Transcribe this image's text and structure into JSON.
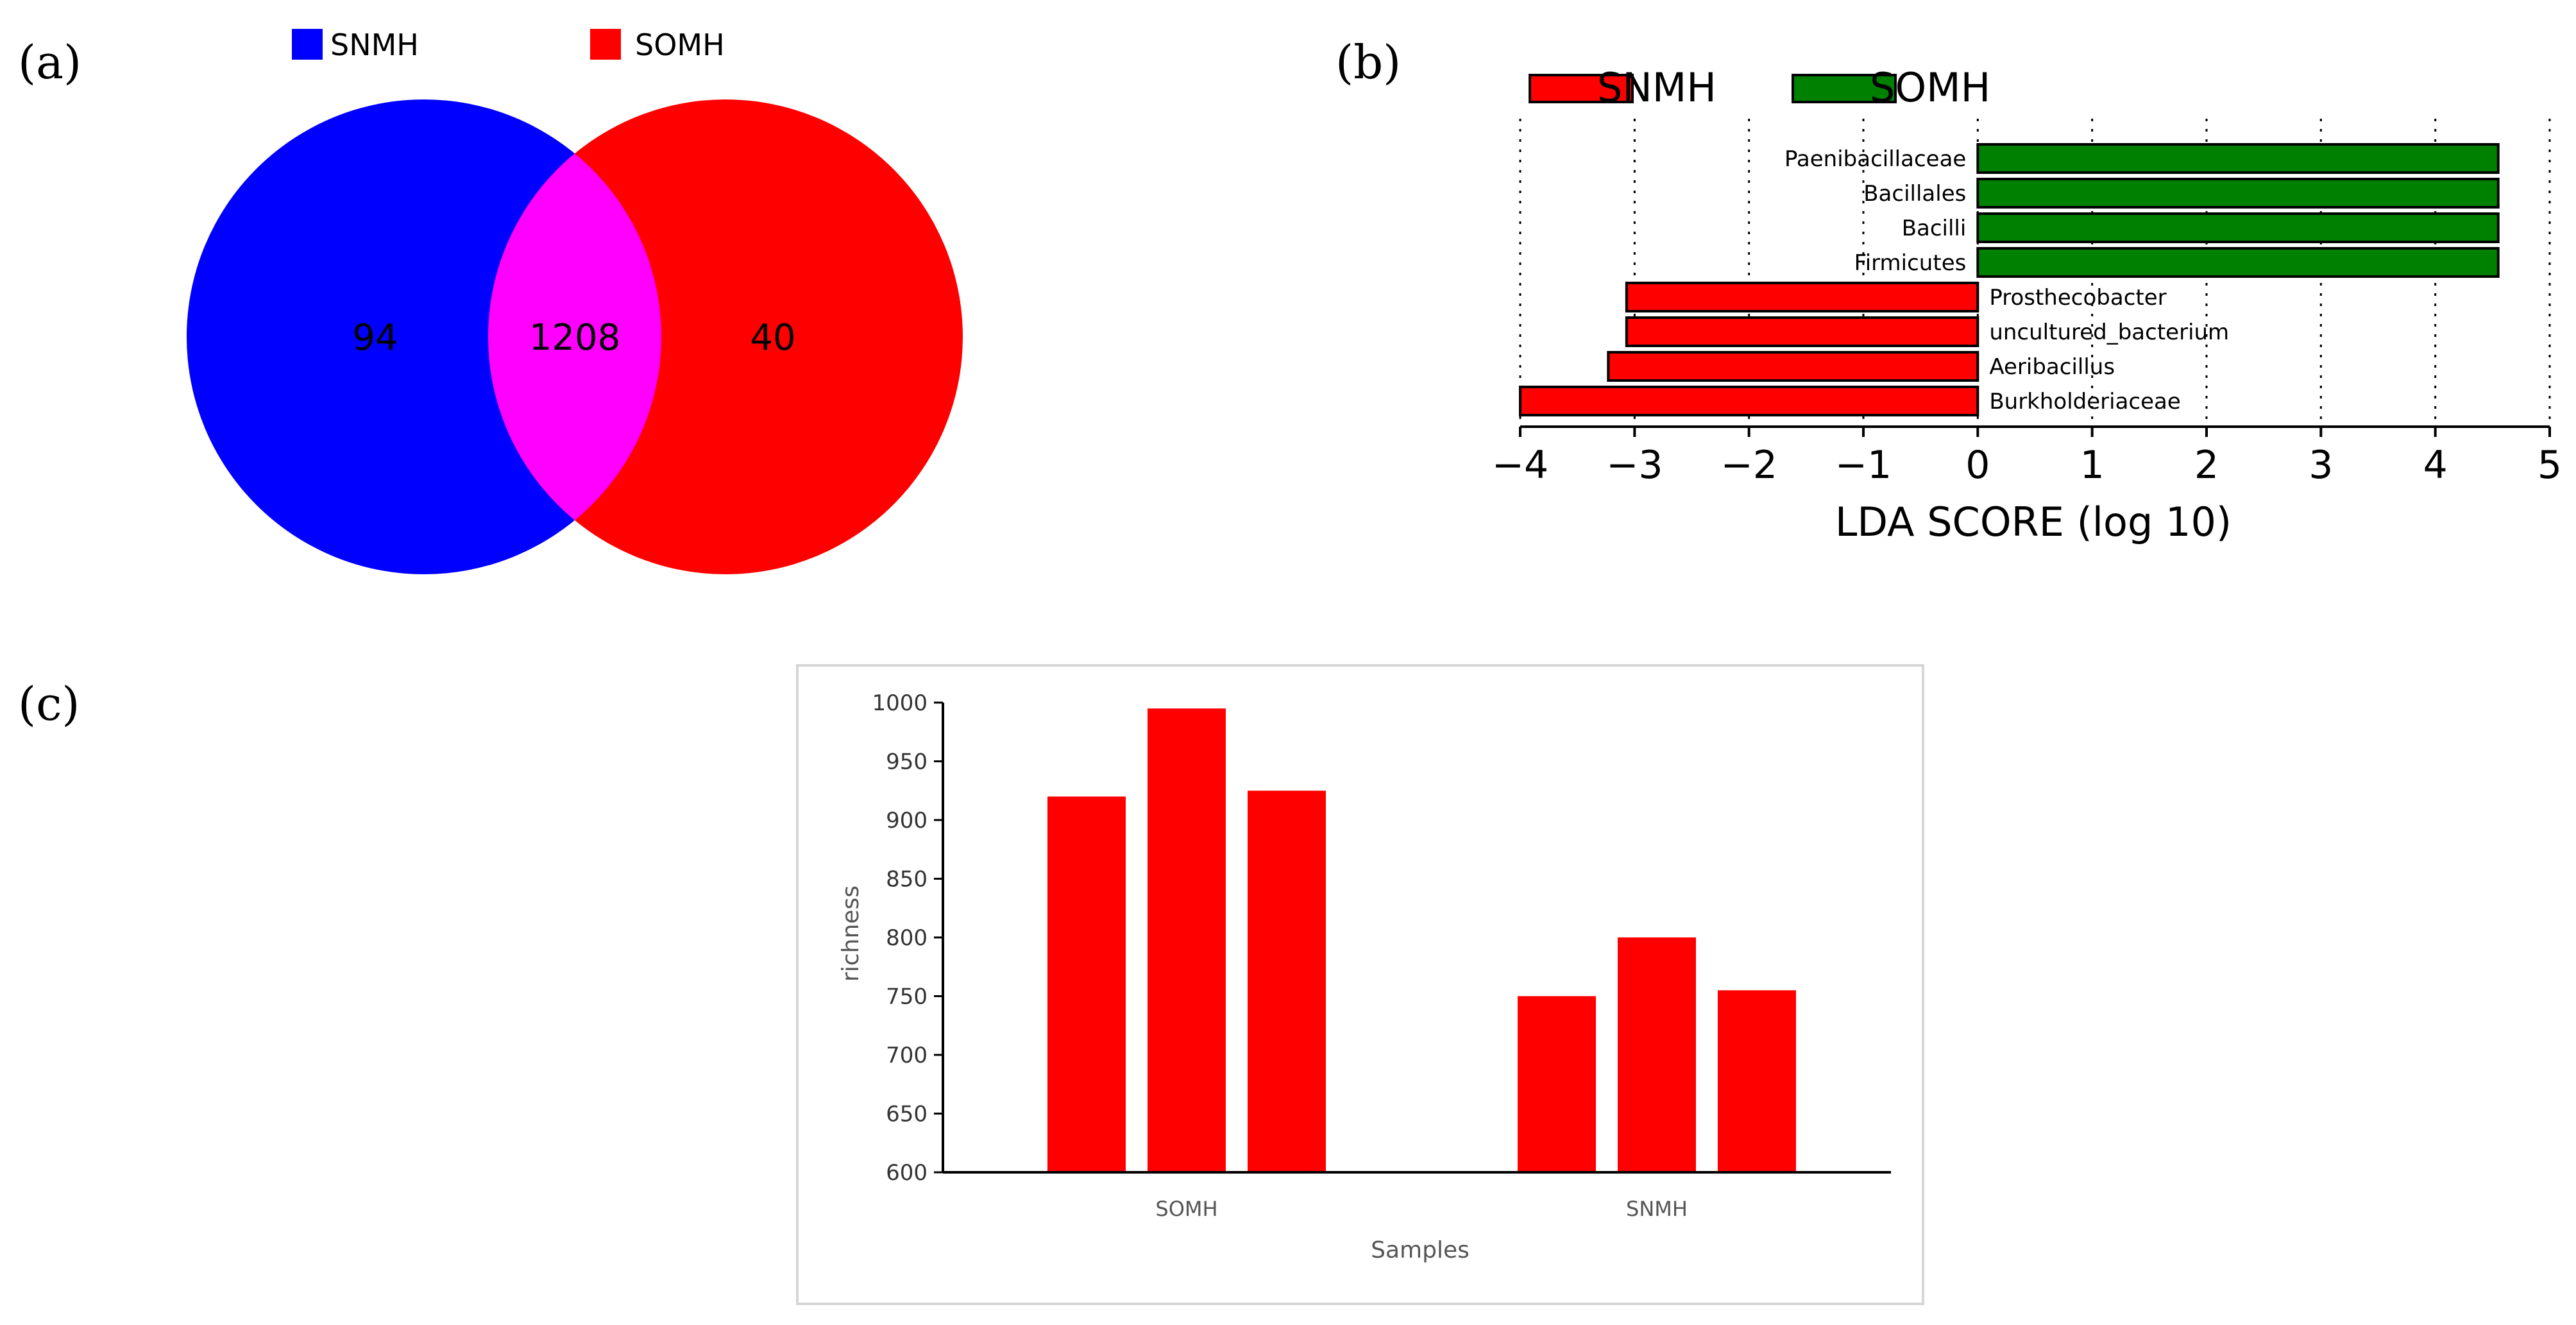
{
  "panel_labels": [
    "(a)",
    "(b)",
    "(c)"
  ],
  "colors": {
    "blue": "#0000ff",
    "red": "#ff0000",
    "magenta": "#ff00ff",
    "green": "#008000",
    "lda_red": "#ff0000"
  },
  "chart_data": [
    {
      "type": "venn",
      "legend": [
        "SNMH",
        "SOMH"
      ],
      "sets": [
        {
          "name": "SNMH",
          "only": "94"
        },
        {
          "name": "SOMH",
          "only": "40"
        }
      ],
      "intersection": "1208"
    },
    {
      "type": "bar",
      "orientation": "horizontal",
      "legend": [
        "SNMH",
        "SOMH"
      ],
      "xlabel": "LDA SCORE (log 10)",
      "xlim": [
        -4,
        5
      ],
      "xticks": [
        "−4",
        "−3",
        "−2",
        "−1",
        "0",
        "1",
        "2",
        "3",
        "4",
        "5"
      ],
      "bars": [
        {
          "taxon": "Paenibacillaceae",
          "value": 4.55,
          "group": "SOMH"
        },
        {
          "taxon": "Bacillales",
          "value": 4.55,
          "group": "SOMH"
        },
        {
          "taxon": "Bacilli",
          "value": 4.55,
          "group": "SOMH"
        },
        {
          "taxon": "Firmicutes",
          "value": 4.55,
          "group": "SOMH"
        },
        {
          "taxon": "Prosthecobacter",
          "value": -3.07,
          "group": "SNMH"
        },
        {
          "taxon": "uncultured_bacterium",
          "value": -3.07,
          "group": "SNMH"
        },
        {
          "taxon": "Aeribacillus",
          "value": -3.23,
          "group": "SNMH"
        },
        {
          "taxon": "Burkholderiaceae",
          "value": -4.0,
          "group": "SNMH"
        }
      ]
    },
    {
      "type": "bar",
      "ylabel": "richness",
      "xlabel": "Samples",
      "ylim": [
        600,
        1000
      ],
      "yticks": [
        "600",
        "650",
        "700",
        "750",
        "800",
        "850",
        "900",
        "950",
        "1000"
      ],
      "groups": [
        {
          "name": "SOMH",
          "values": [
            920,
            995,
            925
          ]
        },
        {
          "name": "SNMH",
          "values": [
            750,
            800,
            755
          ]
        }
      ]
    }
  ]
}
